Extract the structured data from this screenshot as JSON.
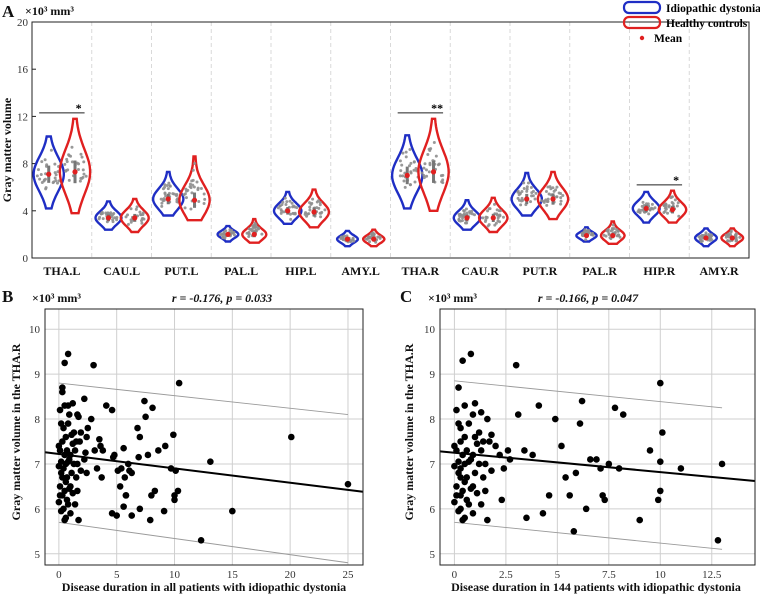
{
  "colors": {
    "dystonia": "#1f2ec4",
    "controls": "#e02020",
    "mean": "#e02020",
    "points": "#8e8e8e",
    "scatter_point": "#000000",
    "regression": "#000000",
    "band": "#9a9a9a"
  },
  "chart_data": [
    {
      "panel": "A",
      "type": "violin",
      "unit_label": "×10³ mm³",
      "ylabel": "Gray matter volume",
      "ylim": [
        0,
        20
      ],
      "yticks": [
        0,
        4,
        8,
        12,
        16,
        20
      ],
      "categories": [
        "THA.L",
        "CAU.L",
        "PUT.L",
        "PAL.L",
        "HIP.L",
        "AMY.L",
        "THA.R",
        "CAU.R",
        "PUT.R",
        "PAL.R",
        "HIP.R",
        "AMY.R"
      ],
      "legend": {
        "dystonia": "Idiopathic dystonia",
        "controls": "Healthy controls",
        "mean": "Mean"
      },
      "series": [
        {
          "name": "Idiopathic dystonia",
          "mean": [
            7.1,
            3.4,
            5.0,
            2.0,
            4.0,
            1.6,
            7.0,
            3.4,
            5.0,
            1.9,
            4.2,
            1.7
          ],
          "min": [
            4.2,
            2.4,
            3.6,
            1.4,
            2.9,
            1.0,
            4.2,
            2.4,
            3.6,
            1.4,
            3.0,
            1.0
          ],
          "max": [
            10.3,
            4.8,
            7.3,
            2.7,
            5.6,
            2.3,
            10.4,
            4.9,
            7.2,
            2.6,
            5.6,
            2.5
          ]
        },
        {
          "name": "Healthy controls",
          "mean": [
            7.3,
            3.4,
            4.9,
            2.0,
            3.9,
            1.6,
            7.3,
            3.4,
            5.0,
            1.9,
            4.1,
            1.7
          ],
          "min": [
            3.8,
            2.2,
            3.2,
            1.3,
            2.6,
            1.0,
            4.0,
            2.2,
            3.3,
            1.2,
            3.0,
            1.0
          ],
          "max": [
            11.8,
            5.0,
            8.6,
            3.3,
            5.8,
            2.4,
            11.8,
            5.1,
            7.3,
            3.1,
            5.7,
            2.5
          ]
        }
      ],
      "significance": [
        {
          "category": "THA.L",
          "label": "*",
          "y": 12.3
        },
        {
          "category": "THA.R",
          "label": "**",
          "y": 12.3
        },
        {
          "category": "HIP.R",
          "label": "*",
          "y": 6.2
        }
      ]
    },
    {
      "panel": "B",
      "type": "scatter",
      "unit_label": "×10³ mm³",
      "stats": "r = -0.176,  p = 0.033",
      "ylabel": "Gray matter volume in the THA.R",
      "xlabel": "Disease duration in all patients with idiopathic dystonia",
      "xlim": [
        -1.2,
        26.3
      ],
      "ylim": [
        4.75,
        10.45
      ],
      "xticks": [
        0,
        5,
        10,
        15,
        20,
        25
      ],
      "yticks": [
        5,
        6,
        7,
        8,
        9,
        10
      ],
      "regression": {
        "x": [
          -1.2,
          26.3
        ],
        "y": [
          7.26,
          6.38
        ]
      },
      "band_upper": {
        "x": [
          0,
          25
        ],
        "y": [
          8.8,
          8.1
        ]
      },
      "band_lower": {
        "x": [
          0,
          25
        ],
        "y": [
          5.7,
          4.8
        ]
      },
      "x": [
        0.5,
        0.8,
        1.2,
        1.6,
        0.3,
        0.5,
        0.9,
        1.7,
        0.1,
        0.4,
        0.8,
        1.3,
        1.9,
        0.2,
        0.6,
        1.1,
        1.5,
        0.0,
        0.3,
        0.7,
        1.2,
        1.8,
        0.1,
        0.5,
        0.9,
        1.4,
        0.2,
        0.6,
        1.0,
        1.6,
        0.0,
        0.4,
        0.8,
        1.3,
        1.9,
        0.2,
        0.7,
        1.1,
        0.3,
        0.6,
        1.0,
        1.5,
        0.1,
        0.5,
        0.9,
        1.6,
        0.3,
        0.7,
        1.2,
        0.0,
        0.4,
        0.8,
        1.4,
        0.2,
        0.6,
        1.0,
        1.7,
        0.1,
        0.5,
        0.3,
        0.8,
        2.2,
        3.0,
        4.1,
        4.6,
        3.6,
        2.8,
        2.5,
        2.4,
        3.5,
        2.3,
        2.2,
        3.1,
        3.8,
        4.8,
        3.3,
        2.4,
        3.7,
        5.6,
        4.7,
        5.4,
        5.1,
        6.0,
        6.3,
        5.7,
        5.3,
        5.8,
        4.6,
        6.3,
        5.0,
        5.6,
        7.0,
        5.8,
        7.4,
        6.8,
        7.0,
        6.9,
        7.7,
        6.1,
        8.1,
        7.5,
        8.3,
        8.0,
        7.9,
        9.2,
        8.6,
        9.7,
        10.0,
        10.1,
        9.9,
        10.3,
        10.0,
        9.1,
        10.4,
        12.3,
        13.1,
        15.0,
        20.1,
        25.0
      ],
      "y": [
        9.25,
        9.45,
        8.35,
        8.1,
        8.7,
        8.3,
        8.1,
        8.05,
        8.2,
        7.8,
        7.9,
        7.7,
        7.7,
        7.9,
        7.6,
        7.65,
        7.5,
        7.4,
        7.5,
        7.3,
        7.45,
        7.5,
        7.3,
        7.2,
        7.1,
        7.3,
        7.05,
        7.0,
        7.2,
        7.0,
        6.95,
        6.9,
        7.05,
        7.0,
        6.85,
        6.8,
        6.7,
        6.8,
        6.7,
        6.6,
        6.5,
        6.7,
        6.5,
        6.4,
        6.45,
        6.4,
        6.3,
        6.2,
        6.35,
        6.15,
        6.0,
        6.1,
        6.1,
        5.95,
        5.8,
        5.9,
        5.75,
        6.3,
        5.75,
        8.6,
        8.3,
        8.45,
        9.2,
        8.3,
        8.2,
        7.4,
        8.0,
        7.8,
        7.6,
        7.55,
        7.25,
        7.1,
        7.3,
        7.3,
        7.2,
        6.9,
        6.8,
        6.7,
        7.35,
        7.15,
        6.9,
        6.85,
        7.0,
        6.8,
        6.7,
        6.5,
        6.3,
        5.9,
        5.85,
        5.85,
        6.05,
        6.0,
        6.3,
        8.4,
        7.8,
        7.6,
        7.15,
        7.2,
        6.85,
        8.25,
        8.05,
        6.4,
        6.3,
        5.75,
        7.4,
        7.3,
        6.9,
        6.2,
        6.85,
        7.65,
        6.4,
        6.3,
        5.95,
        8.8,
        5.3,
        7.05,
        5.95,
        7.6,
        6.55
      ]
    },
    {
      "panel": "C",
      "type": "scatter",
      "unit_label": "×10³ mm³",
      "stats": "r = -0.166,  p = 0.047",
      "ylabel": "Gray matter volume in the THA.R",
      "xlabel": "Disease duration in  144 patients with idiopathic dystonia",
      "xlim": [
        -0.7,
        14.6
      ],
      "ylim": [
        4.75,
        10.45
      ],
      "xticks": [
        0,
        2.5,
        5,
        7.5,
        10,
        12.5
      ],
      "xticklabels": [
        "0",
        "2.5",
        "5",
        "7.5",
        "10",
        "12.5"
      ],
      "yticks": [
        5,
        6,
        7,
        8,
        9,
        10
      ],
      "regression": {
        "x": [
          -0.7,
          14.6
        ],
        "y": [
          7.28,
          6.62
        ]
      },
      "band_upper": {
        "x": [
          0,
          13
        ],
        "y": [
          8.85,
          8.25
        ]
      },
      "band_lower": {
        "x": [
          0,
          13
        ],
        "y": [
          5.7,
          5.1
        ]
      },
      "x": [
        0.4,
        0.8,
        1.0,
        1.3,
        0.2,
        0.5,
        0.9,
        1.6,
        0.1,
        0.3,
        0.7,
        1.2,
        1.8,
        0.2,
        0.5,
        1.0,
        1.4,
        0.0,
        0.3,
        0.6,
        1.1,
        1.7,
        0.1,
        0.4,
        0.8,
        1.3,
        0.2,
        0.5,
        0.9,
        1.5,
        0.0,
        0.3,
        0.7,
        1.2,
        1.8,
        0.2,
        0.6,
        1.0,
        0.3,
        0.5,
        0.9,
        1.4,
        0.1,
        0.4,
        0.8,
        1.5,
        0.3,
        0.6,
        1.1,
        0.0,
        0.3,
        0.7,
        1.3,
        0.2,
        0.5,
        0.9,
        1.6,
        0.1,
        0.4,
        2.0,
        2.6,
        3.1,
        2.4,
        2.3,
        2.2,
        3.0,
        3.4,
        2.7,
        4.1,
        3.8,
        4.6,
        4.3,
        5.2,
        4.9,
        3.5,
        5.4,
        5.8,
        6.1,
        6.2,
        5.6,
        6.6,
        5.9,
        6.4,
        7.3,
        7.1,
        7.5,
        6.9,
        8.0,
        7.8,
        8.2,
        7.2,
        9.0,
        9.5,
        10.1,
        10.0,
        10.0,
        9.9,
        11.0,
        10.0,
        12.8,
        13.0
      ],
      "y": [
        9.3,
        9.45,
        8.35,
        8.15,
        8.7,
        8.3,
        8.1,
        8.0,
        8.2,
        7.8,
        7.9,
        7.7,
        7.65,
        7.9,
        7.6,
        7.6,
        7.5,
        7.4,
        7.5,
        7.3,
        7.45,
        7.5,
        7.3,
        7.2,
        7.1,
        7.3,
        7.05,
        7.0,
        7.2,
        7.0,
        6.95,
        6.9,
        7.05,
        7.0,
        6.85,
        6.8,
        6.7,
        6.8,
        6.7,
        6.6,
        6.5,
        6.7,
        6.5,
        6.4,
        6.45,
        6.4,
        6.3,
        6.2,
        6.35,
        6.15,
        6.0,
        6.1,
        6.1,
        5.95,
        5.8,
        5.9,
        5.75,
        6.3,
        5.75,
        7.4,
        7.3,
        8.1,
        6.9,
        6.2,
        7.2,
        9.2,
        7.3,
        7.1,
        8.3,
        7.2,
        6.3,
        5.9,
        7.4,
        8.0,
        5.8,
        6.7,
        5.5,
        7.9,
        8.4,
        6.3,
        7.1,
        6.8,
        6.0,
        6.2,
        6.9,
        7.0,
        7.1,
        6.9,
        8.25,
        8.1,
        6.3,
        5.75,
        7.3,
        7.7,
        8.8,
        6.4,
        6.2,
        6.9,
        7.05,
        5.3,
        7.0
      ]
    }
  ]
}
